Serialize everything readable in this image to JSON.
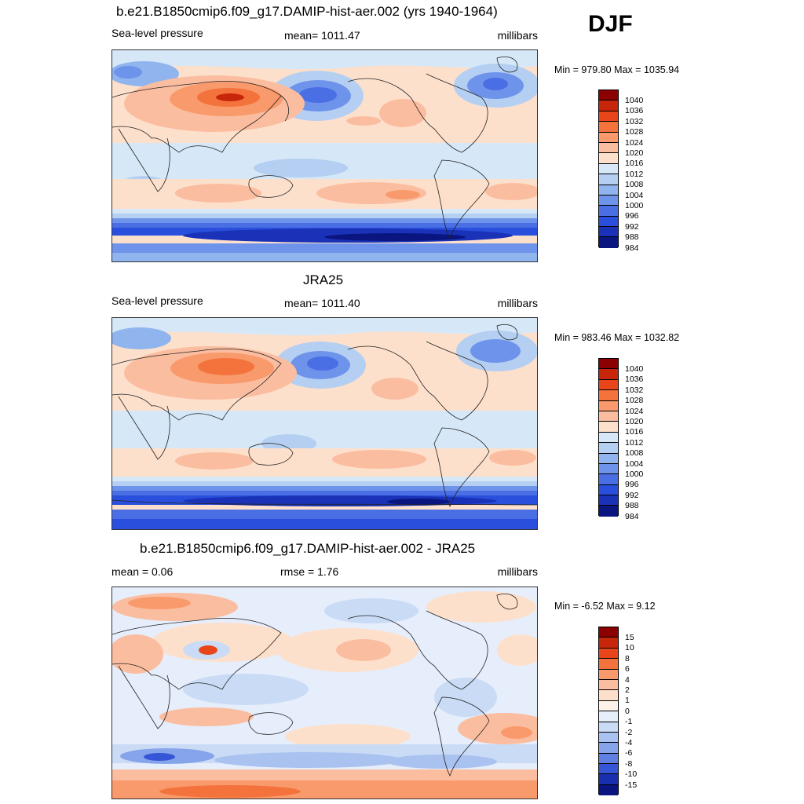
{
  "season": "DJF",
  "colors": {
    "slp": [
      "#8b0000",
      "#c8260b",
      "#e8461a",
      "#f4733c",
      "#f99a6c",
      "#fbbda0",
      "#fde0cc",
      "#d6e8f8",
      "#b5cff2",
      "#90b4ee",
      "#6e93ea",
      "#4a6ee4",
      "#2a4fdc",
      "#1a32b8",
      "#0b1580"
    ],
    "diff": [
      "#8b0000",
      "#c8260b",
      "#e8461a",
      "#f4733c",
      "#f99a6c",
      "#fbbda0",
      "#fde0cc",
      "#fdf2ea",
      "#e6eefb",
      "#c9dbf5",
      "#a9c2ef",
      "#86a4ea",
      "#5f80e2",
      "#3556d6",
      "#182fb0",
      "#0b1580"
    ]
  },
  "panels": [
    {
      "title": "b.e21.B1850cmip6.f09_g17.DAMIP-hist-aer.002 (yrs 1940-1964)",
      "left_label": "Sea-level pressure",
      "center_label": "mean= 1011.47",
      "right_label": "millibars",
      "minmax": "Min = 979.80 Max = 1035.94",
      "colorbar": "slp",
      "levels": [
        "1040",
        "1036",
        "1032",
        "1028",
        "1024",
        "1020",
        "1016",
        "1012",
        "1008",
        "1004",
        "1000",
        "996",
        "992",
        "988",
        "984"
      ]
    },
    {
      "title": "JRA25",
      "left_label": "Sea-level pressure",
      "center_label": "mean= 1011.40",
      "right_label": "millibars",
      "minmax": "Min = 983.46 Max = 1032.82",
      "colorbar": "slp",
      "levels": [
        "1040",
        "1036",
        "1032",
        "1028",
        "1024",
        "1020",
        "1016",
        "1012",
        "1008",
        "1004",
        "1000",
        "996",
        "992",
        "988",
        "984"
      ]
    },
    {
      "title": "b.e21.B1850cmip6.f09_g17.DAMIP-hist-aer.002 - JRA25",
      "left_label": "mean =   0.06",
      "center_label": "rmse =   1.76",
      "right_label": "millibars",
      "minmax": "Min =  -6.52 Max =   9.12",
      "colorbar": "diff",
      "levels": [
        "15",
        "10",
        "8",
        "6",
        "4",
        "2",
        "1",
        "0",
        "-1",
        "-2",
        "-4",
        "-6",
        "-8",
        "-10",
        "-15"
      ]
    }
  ]
}
